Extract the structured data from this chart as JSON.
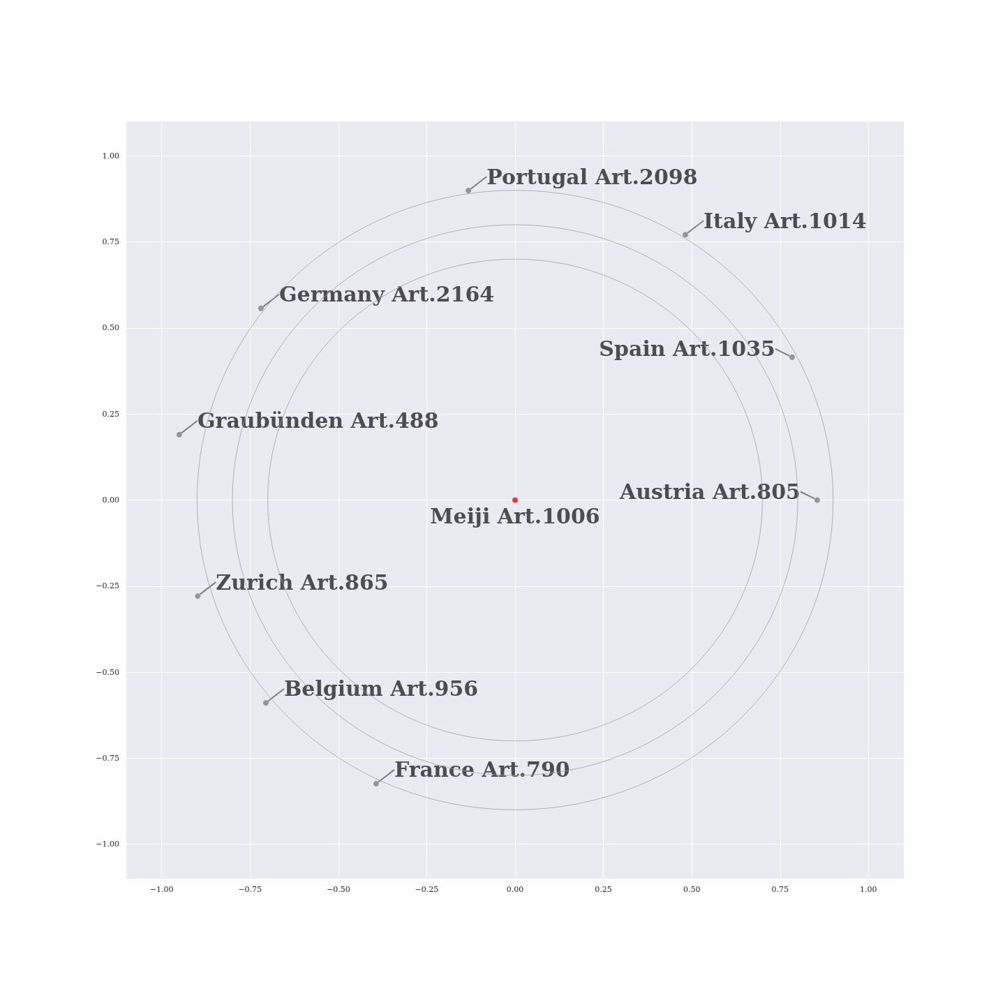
{
  "chart_data": {
    "type": "scatter",
    "marker": "circle",
    "grid": true,
    "xlim": [
      -1.1,
      1.1
    ],
    "ylim": [
      -1.1,
      1.1
    ],
    "xticks": [
      {
        "value": -1,
        "label": "−1.00"
      },
      {
        "value": -0.75,
        "label": "−0.75"
      },
      {
        "value": -0.5,
        "label": "−0.50"
      },
      {
        "value": -0.25,
        "label": "−0.25"
      },
      {
        "value": 0,
        "label": "0.00"
      },
      {
        "value": 0.25,
        "label": "0.25"
      },
      {
        "value": 0.5,
        "label": "0.50"
      },
      {
        "value": 0.75,
        "label": "0.75"
      },
      {
        "value": 1,
        "label": "1.00"
      }
    ],
    "yticks": [
      {
        "value": -1,
        "label": "−1.00"
      },
      {
        "value": -0.75,
        "label": "−0.75"
      },
      {
        "value": -0.5,
        "label": "−0.50"
      },
      {
        "value": -0.25,
        "label": "−0.25"
      },
      {
        "value": 0,
        "label": "0.00"
      },
      {
        "value": 0.25,
        "label": "0.25"
      },
      {
        "value": 0.5,
        "label": "0.50"
      },
      {
        "value": 0.75,
        "label": "0.75"
      },
      {
        "value": 1,
        "label": "1.00"
      }
    ],
    "annotations": [
      {
        "text": "Meiji Art.1006",
        "x": 0,
        "y": 0
      },
      {
        "text": "Portugal Art.2098",
        "x": -0.132,
        "y": 0.899
      },
      {
        "text": "Italy Art.1014",
        "x": 0.482,
        "y": 0.771
      },
      {
        "text": "Germany Art.2164",
        "x": -0.719,
        "y": 0.557
      },
      {
        "text": "Spain Art.1035",
        "x": 0.784,
        "y": 0.415
      },
      {
        "text": "Graubünden Art.488",
        "x": -0.95,
        "y": 0.19
      },
      {
        "text": "Austria Art.805",
        "x": 0.855,
        "y": 0
      },
      {
        "text": "Zurich Art.865",
        "x": -0.898,
        "y": -0.279
      },
      {
        "text": "Belgium Art.956",
        "x": -0.705,
        "y": -0.589
      },
      {
        "text": "France Art.790",
        "x": -0.393,
        "y": -0.824
      }
    ],
    "series": [
      {
        "colors": [
          "#ff0000",
          "#808080",
          "#808080",
          "#808080",
          "#808080",
          "#808080",
          "#808080",
          "#808080",
          "#808080",
          "#808080"
        ],
        "x": [
          0,
          -0.132,
          0.482,
          -0.719,
          0.784,
          -0.95,
          0.855,
          -0.898,
          -0.705,
          -0.393
        ],
        "values": [
          0,
          0.899,
          0.771,
          0.557,
          0.415,
          0.19,
          0,
          -0.279,
          -0.589,
          -0.824
        ]
      }
    ]
  }
}
